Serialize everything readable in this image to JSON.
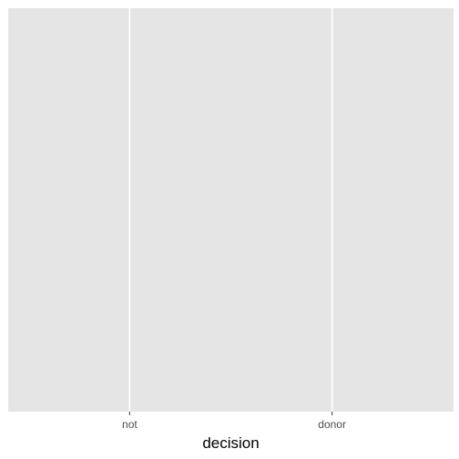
{
  "chart_data": {
    "type": "bar",
    "categories": [
      "not",
      "donor"
    ],
    "xlabel": "decision",
    "ylabel": "",
    "title": "",
    "series": [],
    "grid": true,
    "legend": "none"
  },
  "colors": {
    "panel_background": "#E5E5E5",
    "grid_line": "#FFFFFF",
    "tick_label": "#4D4D4D",
    "axis_title": "#000000"
  }
}
